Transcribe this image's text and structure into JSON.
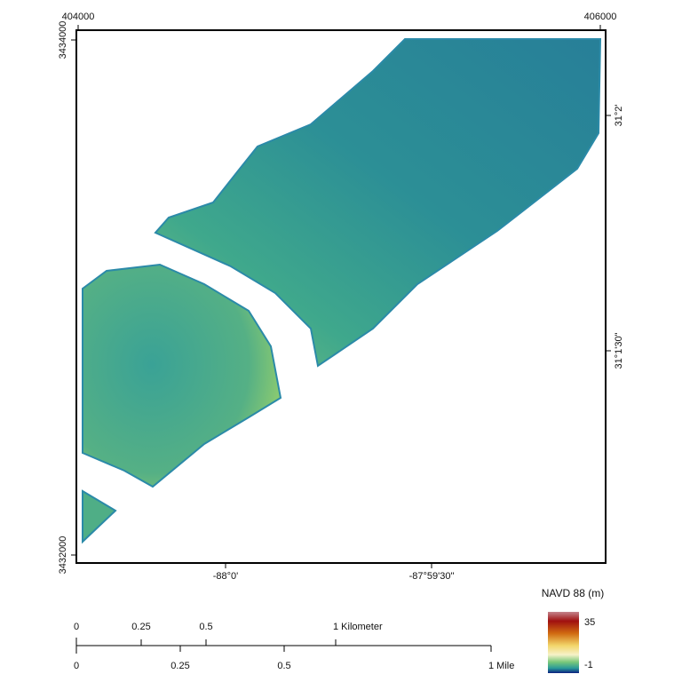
{
  "map": {
    "top_labels": [
      "404000",
      "406000"
    ],
    "left_labels": [
      "3434000",
      "3432000"
    ],
    "right_labels": [
      "31°2'",
      "31°1'30\""
    ],
    "bottom_labels": [
      "-88°0'",
      "-87°59'30\""
    ],
    "legend": {
      "title": "NAVD 88 (m)",
      "max": "35",
      "min": "-1"
    },
    "scale_bar": {
      "kilometer_labels": [
        "0",
        "0.25",
        "0.5",
        "1 Kilometer"
      ],
      "mile_labels": [
        "0",
        "0.25",
        "0.5",
        "1 Mile"
      ]
    }
  }
}
